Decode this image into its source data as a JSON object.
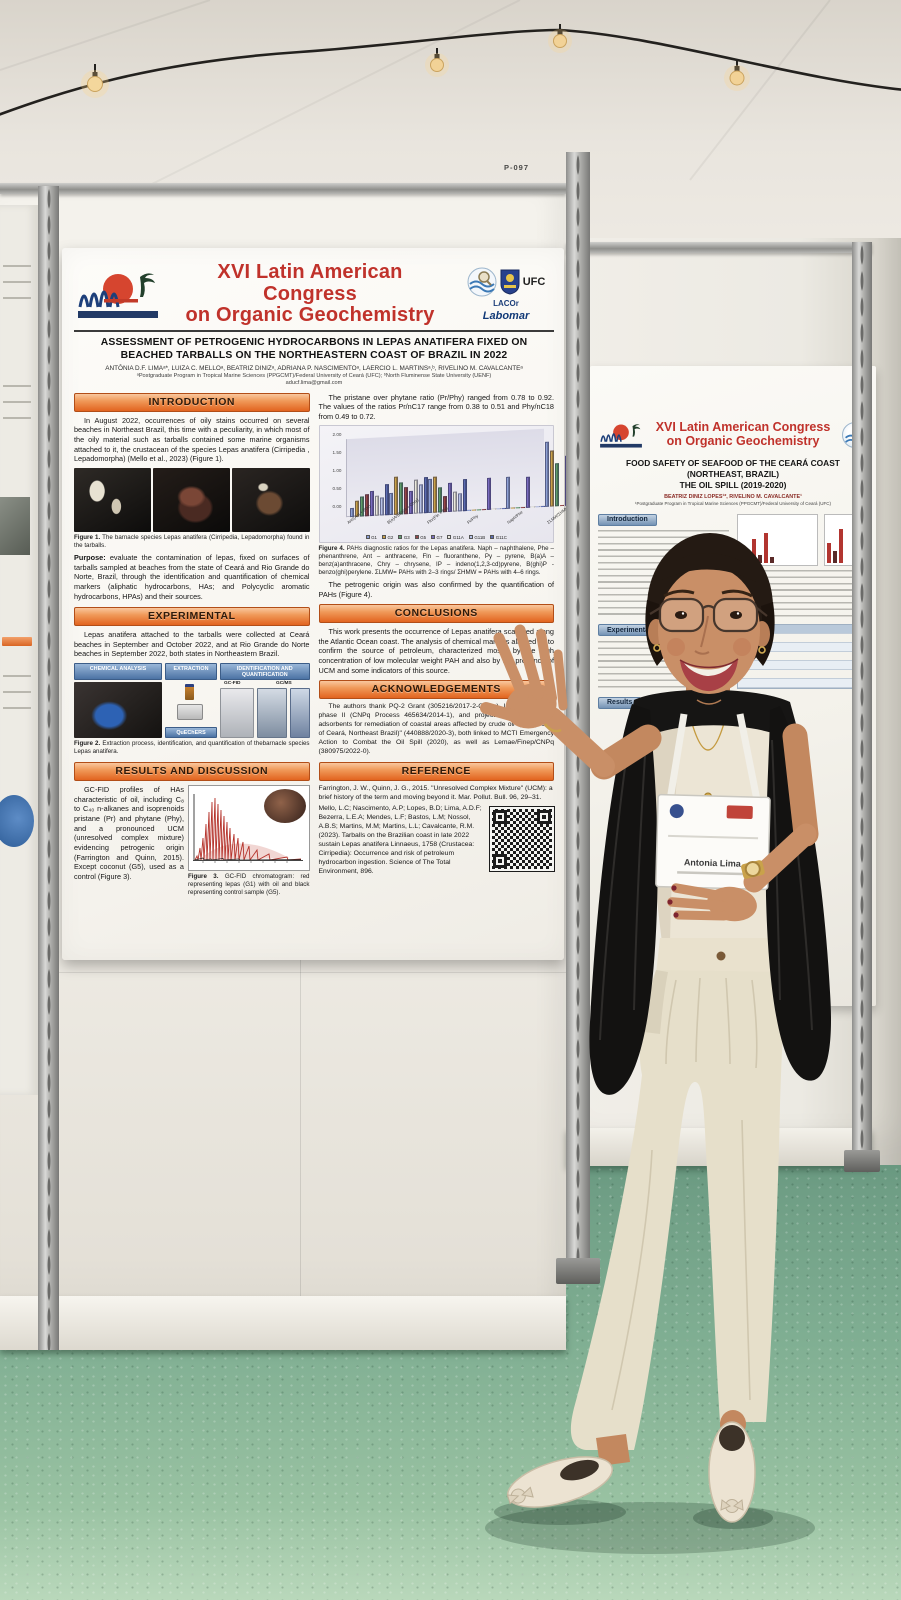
{
  "scene": {
    "board_label": "P-097"
  },
  "badge": {
    "name": "Antonia Lima"
  },
  "main_poster": {
    "congress": {
      "line1": "XVI Latin American Congress",
      "line2": "on Organic Geochemistry"
    },
    "logos": {
      "lacor": "LACOr",
      "ufc": "UFC",
      "labomar": "Labomar"
    },
    "title": "ASSESSMENT OF PETROGENIC HYDROCARBONS IN LEPAS ANATIFERA FIXED ON BEACHED TARBALLS ON THE NORTHEASTERN COAST OF BRAZIL IN 2022",
    "authors": "ANTÔNIA D.F. LIMAᵃ*, LUIZA C. MELLOᵃ, BEATRIZ DINIZᵃ, ADRIANA P. NASCIMENTOᵃ, LAERCIO L. MARTINSᵃ,ᵇ, RIVELINO M. CAVALCANTEᵃ",
    "affiliations": "ᵃPostgraduate Program in Tropical Marine Sciences (PPGCMT)/Federal University of Ceará (UFC); ᵇNorth Fluminense State University (UENF)",
    "email": "aducf.lima@gmail.com",
    "introduction": {
      "header": "INTRODUCTION",
      "text": "In August 2022, occurrences of oily stains occurred on several beaches in Northeast Brazil, this time with a peculiarity, in which most of the oily material such as tarballs contained some marine organisms attached to it, the crustacean of the species Lepas anatifera (Cirripedia , Lepadomorpha) (Mello et al., 2023) (Figure 1)."
    },
    "figure1_caption_bold": "Figure 1.",
    "figure1_caption": " The barnacle species Lepas anatifera (Cirripedia, Lepadomorpha) found in the tarballs.",
    "purpose_label": "Purpose:",
    "purpose_text": " evaluate the contamination of lepas, fixed on surfaces of tarballs sampled at beaches from the state of Ceará and Rio Grande do Norte, Brazil, through the identification and quantification of chemical markers (aliphatic hydrocarbons, HAs; and Polycyclic aromatic hydrocarbons, HPAs) and their sources.",
    "experimental": {
      "header": "EXPERIMENTAL",
      "text": "Lepas anatifera attached to the tarballs were collected at Ceará beaches in September and October 2022, and at Rio Grande do Norte beaches in September 2022, both states in Northeastern Brazil."
    },
    "figure2": {
      "step1": "CHEMICAL ANALYSIS",
      "step2": "EXTRACTION",
      "step3": "IDENTIFICATION AND QUANTIFICATION",
      "gcfid": "GC-FID",
      "gcms": "GC/MS",
      "quechers": "QuEChERS",
      "caption_bold": "Figure 2.",
      "caption": " Extraction process, identification, and quantification of thebarnacle species Lepas anatifera."
    },
    "results": {
      "header": "RESULTS AND DISCUSSION",
      "text": "GC-FID profiles of HAs characteristic of oil, including C₈ to C₄₀ n-alkanes and isoprenoids pristane (Pr) and phytane (Phy), and a pronounced UCM (unresolved complex mixture) evidencing petrogenic origin (Farrington and Quinn, 2015). Except coconut (G5), used as a control (Figure 3)."
    },
    "figure3_caption_bold": "Figure 3.",
    "figure3_caption": " GC-FID chromatogram: red representing lepas (G1) with oil and black representing control sample (G5).",
    "ratios_text": "The pristane over phytane ratio (Pr/Phy) ranged from 0.78 to 0.92. The values of the ratios Pr/nC17 range from 0.38 to 0.51 and Phy/nC18 from 0.49 to 0.72.",
    "figure4": {
      "caption_bold": "Figure 4.",
      "caption": " PAHs diagnostic ratios for the Lepas anatifera. Naph – naphthalene, Phe – phenanthrene, Ant – anthracene, Fln – fluoranthene, Py – pyrene, B(a)A – benz(a)anthracene, Chry – chrysene, IP – indeno(1,2,3-cd)pyrene, B(ghi)P - benzo(ghi)perylene. ΣLMW= PAHs with 2–3 rings/ ΣHMW = PAHs with 4–6 rings.",
      "chart": {
        "type": "bar",
        "title": "PAHs diagnostic ratios for Lepas anatifera",
        "categories": [
          "Ant/(Ant + Phe)",
          "B(a)A/(B(a)A + Chry)",
          "Fln/(Fln + Py)",
          "Pr/Phy",
          "Naph/Phe",
          "ΣLMW/ΣHMW"
        ],
        "series": [
          {
            "name": "G1",
            "values": [
              0.25,
              0.6,
              0.95,
              0.0,
              0.9,
              1.8
            ]
          },
          {
            "name": "G2",
            "values": [
              0.45,
              1.05,
              1.0,
              0.0,
              0.0,
              1.55
            ]
          },
          {
            "name": "G3",
            "values": [
              0.55,
              0.9,
              0.7,
              0.0,
              0.0,
              1.2
            ]
          },
          {
            "name": "G5",
            "values": [
              0.6,
              0.75,
              0.45,
              0.0,
              0.0,
              0.0
            ]
          },
          {
            "name": "G7",
            "values": [
              0.7,
              0.65,
              0.8,
              0.9,
              0.85,
              1.4
            ]
          },
          {
            "name": "G11A",
            "values": [
              0.55,
              0.95,
              0.55,
              0.0,
              0.0,
              1.7
            ]
          },
          {
            "name": "G11B",
            "values": [
              0.5,
              0.8,
              0.5,
              0.0,
              0.0,
              1.6
            ]
          },
          {
            "name": "G11C",
            "values": [
              0.85,
              1.0,
              0.9,
              0.0,
              0.0,
              1.65
            ]
          }
        ],
        "ylim": [
          0,
          2
        ],
        "yticks": [
          "2.00",
          "1.50",
          "1.00",
          "0.50",
          "0.00"
        ],
        "legend_position": "bottom",
        "grid": false
      }
    },
    "petrogenic_text": "The petrogenic origin was also confirmed by the quantification of PAHs (Figure 4).",
    "conclusions": {
      "header": "CONCLUSIONS",
      "text": "This work presents the occurrence of Lepas anatifera scattered along the Atlantic Ocean coast. The analysis of chemical markers allowed us to confirm the source of petroleum, characterized mostly by the high concentration of low molecular weight PAH and also by the presence of UCM and some indicators of this source."
    },
    "acknowledgements": {
      "header": "ACKNOWLEDGEMENTS",
      "text": "The authors thank PQ-2 Grant (305216/2017-2-CNPq), INCT-AmbTropic phase II (CNPq Process 465634/2014-1), and project \"Dispersants and adsorbents for remediation of coastal areas affected by crude oil spills (Coast of Ceará, Northeast Brazil)\" (440888/2020-3), both linked to MCTI Emergency Action to Combat the Oil Spill (2020), as well as Lemae/Finep/CNPq (380975/2022-0)."
    },
    "reference": {
      "header": "REFERENCE",
      "ref1": "Farrington, J. W., Quinn, J. G., 2015. \"Unresolved Complex Mixture\" (UCM): a brief history of the term and moving beyond it. Mar. Pollut. Bull. 96, 29–31.",
      "ref2": "Mello, L.C; Nascimento, A.P; Lopes, B.D; Lima, A.D.F; Bezerra, L.E.A; Mendes, L.F; Bastos, L.M; Nossol, A.B.S; Martins, M.M; Martins, L.L; Cavalcante, R.M. (2023). Tarballs on the Brazilian coast in late 2022 sustain Lepas anatifera Linnaeus, 1758 (Crustacea: Cirripedia): Occurrence and risk of petroleum hydrocarbon ingestion. Science of The Total Environment, 896."
    }
  },
  "right_poster": {
    "congress_line1": "XVI Latin American Congress",
    "congress_line2": "on Organic Geochemistry",
    "title_line1": "FOOD SAFETY OF SEAFOOD OF THE CEARÁ COAST (NORTHEAST, BRAZIL)",
    "title_line2": "THE OIL SPILL (2019-2020)",
    "authors": "BEATRIZ DINIZ LOPES¹*, RIVELINO M. CAVALCANTE¹",
    "affiliation": "¹Postgraduate Program in Tropical Marine Sciences (PPGCMT)/Federal University of Ceará (UFC)",
    "sections": {
      "introduction": "Introduction",
      "experimental": "Experimental",
      "results": "Results"
    }
  },
  "colors": {
    "congress_red": "#c0322b",
    "header_orange": "#e2641f",
    "blue_header": "#7493b5",
    "floor_green": "#7fae92",
    "f4_palette": [
      "#8ea0d6",
      "#c9a14b",
      "#5f9d6d",
      "#96474a",
      "#7a6cc0",
      "#e9e7dc",
      "#b7c1e8",
      "#5c6cb2"
    ]
  }
}
